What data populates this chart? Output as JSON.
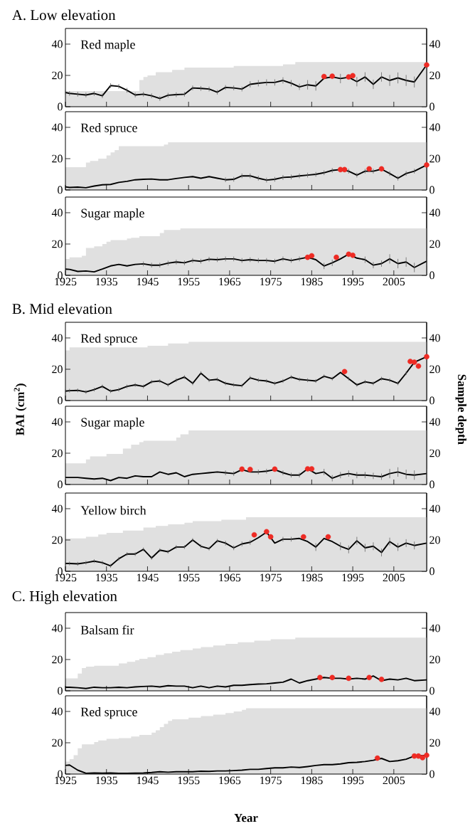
{
  "chart_data": [
    {
      "type": "line",
      "title": "A. Low elevation",
      "annotations": [
        "Red maple"
      ],
      "tick_labels": "y",
      "x": [
        1925,
        1926,
        1928,
        1930,
        1932,
        1934,
        1936,
        1938,
        1940,
        1942,
        1944,
        1946,
        1948,
        1950,
        1952,
        1954,
        1956,
        1958,
        1960,
        1962,
        1964,
        1966,
        1968,
        1970,
        1972,
        1974,
        1976,
        1978,
        1980,
        1982,
        1984,
        1986,
        1988,
        1990,
        1992,
        1994,
        1996,
        1998,
        2000,
        2002,
        2004,
        2006,
        2008,
        2010,
        2013
      ],
      "xlim": [
        1925,
        2013
      ],
      "xticks": [
        1925,
        1935,
        1945,
        1955,
        1965,
        1975,
        1985,
        1995,
        2005
      ],
      "ylim": [
        0,
        50
      ],
      "yticks": [
        0,
        20,
        40
      ],
      "y2lim": [
        0,
        50
      ],
      "y2ticks": [
        0,
        20,
        40
      ],
      "series": [
        {
          "type": "area",
          "axis": "y2",
          "color": "#e0e0e0",
          "x": [
            1925,
            1943,
            1943,
            1944,
            1944,
            1945,
            1945,
            1947,
            1947,
            1951,
            1951,
            1954,
            1954,
            1966,
            1966,
            1978,
            1978,
            1981,
            1981,
            2013
          ],
          "values": [
            10,
            10,
            17,
            17,
            19,
            19,
            20,
            20,
            22,
            22,
            23.5,
            23.5,
            25,
            25,
            26,
            26,
            27,
            27,
            28.5,
            28.5
          ]
        },
        {
          "color": "#000000",
          "values": [
            9.1,
            8.5,
            8,
            7.5,
            8.5,
            7,
            13.5,
            13,
            10.5,
            7.5,
            8,
            7,
            5.3,
            7.3,
            7.7,
            8,
            12,
            11.7,
            11.3,
            9.3,
            12.3,
            12,
            11.3,
            14.3,
            15,
            15.5,
            15.5,
            16.8,
            15,
            12.7,
            14,
            13.3,
            18.2,
            19,
            18,
            18.8,
            16,
            19,
            14.3,
            19,
            16.8,
            18.4,
            16.8,
            15.8,
            26.7
          ],
          "errors": [
            1.5,
            1.5,
            1.5,
            1.5,
            1.5,
            1.5,
            1.5,
            1.5,
            1.5,
            1.5,
            1.5,
            1.5,
            1.5,
            1.5,
            1.5,
            1.5,
            1.5,
            1.5,
            1.5,
            1.5,
            1.5,
            1.5,
            1.5,
            2,
            2,
            2,
            2,
            2,
            2,
            2,
            3,
            3,
            null,
            null,
            3,
            null,
            3,
            3,
            3,
            3,
            3.5,
            3.5,
            3.5,
            3.5,
            null
          ]
        },
        {
          "type": "scatter",
          "marker": "circle",
          "color": "#ee2b24",
          "x": [
            1988,
            1990,
            1994,
            1995,
            2013
          ],
          "values": [
            19.3,
            19.5,
            19,
            19.8,
            26.7
          ]
        }
      ]
    },
    {
      "type": "line",
      "annotations": [
        "Red spruce"
      ],
      "tick_labels": "y",
      "x": [
        1925,
        1926,
        1928,
        1930,
        1932,
        1934,
        1936,
        1938,
        1940,
        1942,
        1944,
        1946,
        1948,
        1950,
        1952,
        1954,
        1956,
        1958,
        1960,
        1962,
        1964,
        1966,
        1968,
        1970,
        1972,
        1974,
        1976,
        1978,
        1980,
        1982,
        1984,
        1986,
        1988,
        1990,
        1992,
        1994,
        1996,
        1998,
        2000,
        2002,
        2004,
        2006,
        2008,
        2010,
        2013
      ],
      "xlim": [
        1925,
        2013
      ],
      "xticks": [
        1925,
        1935,
        1945,
        1955,
        1965,
        1975,
        1985,
        1995,
        2005
      ],
      "ylim": [
        0,
        50
      ],
      "yticks": [
        0,
        20,
        40
      ],
      "y2lim": [
        0,
        50
      ],
      "y2ticks": [
        0,
        20,
        40
      ],
      "series": [
        {
          "type": "area",
          "axis": "y2",
          "color": "#e0e0e0",
          "x": [
            1925,
            1930,
            1930,
            1931,
            1931,
            1933,
            1933,
            1935,
            1935,
            1936,
            1936,
            1937,
            1937,
            1938,
            1938,
            1949,
            1949,
            1950,
            1950,
            2013
          ],
          "values": [
            14.5,
            14.5,
            17.5,
            17.5,
            18.5,
            18.5,
            20,
            20,
            22,
            22,
            24,
            24,
            25.5,
            25.5,
            28,
            28,
            29,
            29,
            30.5,
            30.5
          ]
        },
        {
          "color": "#000000",
          "values": [
            2,
            1.6,
            1.8,
            1.4,
            2.5,
            3.3,
            3.5,
            4.8,
            5.5,
            6.5,
            6.8,
            7,
            6.5,
            6.5,
            7.3,
            8,
            8.5,
            7.5,
            8.5,
            7.5,
            6.5,
            6.8,
            9,
            9,
            7.5,
            6.3,
            6.8,
            8,
            8.3,
            9,
            9.5,
            10,
            11,
            12.5,
            13,
            12,
            9.5,
            12,
            12,
            13.3,
            10.5,
            7.5,
            10.5,
            12,
            16
          ],
          "errors": [
            null,
            null,
            null,
            null,
            null,
            null,
            null,
            null,
            null,
            null,
            null,
            null,
            null,
            null,
            null,
            null,
            null,
            null,
            null,
            null,
            1.5,
            1.5,
            1.5,
            1.5,
            1.5,
            1.5,
            1.5,
            1.5,
            1.5,
            1.5,
            1.5,
            1.5,
            1.5,
            1.5,
            null,
            1.5,
            1.5,
            1.5,
            1.5,
            null,
            1.5,
            1.5,
            1.5,
            1.5,
            null
          ]
        },
        {
          "type": "scatter",
          "marker": "circle",
          "color": "#ee2b24",
          "x": [
            1992,
            1993,
            1999,
            2002,
            2013
          ],
          "values": [
            13,
            13,
            13.5,
            13.5,
            16
          ]
        }
      ]
    },
    {
      "type": "line",
      "annotations": [
        "Sugar maple"
      ],
      "x": [
        1925,
        1926,
        1928,
        1930,
        1932,
        1934,
        1936,
        1938,
        1940,
        1942,
        1944,
        1946,
        1948,
        1950,
        1952,
        1954,
        1956,
        1958,
        1960,
        1962,
        1964,
        1966,
        1968,
        1970,
        1972,
        1974,
        1976,
        1978,
        1980,
        1982,
        1984,
        1986,
        1988,
        1990,
        1992,
        1994,
        1996,
        1998,
        2000,
        2002,
        2004,
        2006,
        2008,
        2010,
        2013
      ],
      "xlim": [
        1925,
        2013
      ],
      "xticks": [
        1925,
        1935,
        1945,
        1955,
        1965,
        1975,
        1985,
        1995,
        2005
      ],
      "ylim": [
        0,
        50
      ],
      "yticks": [
        0,
        20,
        40
      ],
      "y2lim": [
        0,
        50
      ],
      "y2ticks": [
        0,
        20,
        40
      ],
      "series": [
        {
          "type": "area",
          "axis": "y2",
          "color": "#e0e0e0",
          "x": [
            1925,
            1926,
            1926,
            1929,
            1929,
            1930,
            1930,
            1932,
            1932,
            1934,
            1934,
            1935,
            1935,
            1936,
            1936,
            1940,
            1940,
            1941,
            1941,
            1943,
            1943,
            1948,
            1948,
            1949,
            1949,
            1953,
            1953,
            2013
          ],
          "values": [
            10.5,
            10.5,
            11.5,
            11.5,
            12.5,
            12.5,
            17.5,
            17.5,
            18.5,
            18.5,
            20,
            20,
            21.5,
            21.5,
            22.5,
            22.5,
            23.5,
            23.5,
            24,
            24,
            25,
            25,
            27,
            27,
            29,
            29,
            30,
            30
          ]
        },
        {
          "color": "#000000",
          "values": [
            4,
            3.8,
            2.5,
            2.8,
            2.2,
            4,
            6,
            7,
            6,
            7,
            7.3,
            6.5,
            6.5,
            7.8,
            8.5,
            8,
            9.5,
            9,
            10.3,
            10,
            10.5,
            10.5,
            9.5,
            10,
            9.5,
            9.5,
            9,
            10.5,
            9.5,
            10.5,
            11.5,
            10,
            6,
            8,
            10.5,
            13.5,
            11,
            10,
            6.5,
            7.5,
            10.5,
            7.5,
            8.5,
            5,
            9
          ],
          "errors": [
            null,
            null,
            null,
            null,
            null,
            null,
            null,
            null,
            null,
            null,
            1.5,
            1.5,
            1.5,
            1.5,
            1.5,
            1.5,
            1.5,
            1.5,
            1.5,
            1.5,
            1.5,
            1.5,
            1.5,
            1.5,
            1.5,
            1.5,
            1.5,
            1.5,
            1.5,
            1.5,
            null,
            null,
            2,
            2,
            null,
            null,
            null,
            2,
            2,
            2,
            3,
            3,
            3,
            3,
            3
          ]
        },
        {
          "type": "scatter",
          "marker": "circle",
          "color": "#ee2b24",
          "x": [
            1984,
            1985,
            1991,
            1994,
            1995
          ],
          "values": [
            11.5,
            12.5,
            11.5,
            13.5,
            12.8
          ]
        }
      ]
    },
    {
      "type": "line",
      "title": "B. Mid elevation",
      "annotations": [
        "Red spruce"
      ],
      "tick_labels": "y",
      "x": [
        1925,
        1926,
        1928,
        1930,
        1932,
        1934,
        1936,
        1938,
        1940,
        1942,
        1944,
        1946,
        1948,
        1950,
        1952,
        1954,
        1956,
        1958,
        1960,
        1962,
        1964,
        1966,
        1968,
        1970,
        1972,
        1974,
        1976,
        1978,
        1980,
        1982,
        1984,
        1986,
        1988,
        1990,
        1992,
        1994,
        1996,
        1998,
        2000,
        2002,
        2004,
        2006,
        2008,
        2010,
        2013
      ],
      "xlim": [
        1925,
        2013
      ],
      "xticks": [
        1925,
        1935,
        1945,
        1955,
        1965,
        1975,
        1985,
        1995,
        2005
      ],
      "ylim": [
        0,
        50
      ],
      "yticks": [
        0,
        20,
        40
      ],
      "y2lim": [
        0,
        50
      ],
      "y2ticks": [
        0,
        20,
        40
      ],
      "series": [
        {
          "type": "area",
          "axis": "y2",
          "color": "#e0e0e0",
          "x": [
            1925,
            1926,
            1926,
            1945,
            1945,
            1950,
            1950,
            1955,
            1955,
            2013
          ],
          "values": [
            32,
            32,
            34,
            34,
            35,
            35,
            36.5,
            36.5,
            37.5,
            37.5
          ]
        },
        {
          "color": "#000000",
          "values": [
            6,
            6.3,
            6.5,
            5.5,
            7,
            9,
            6,
            7,
            9,
            10,
            9,
            12,
            12.5,
            10,
            13,
            15,
            11,
            17.5,
            13,
            13.5,
            11,
            10,
            9.5,
            14.5,
            13,
            12.5,
            11,
            12.5,
            15,
            13.5,
            13,
            12.5,
            15.5,
            14,
            18,
            14,
            10,
            12,
            11,
            14,
            13,
            11,
            17.5,
            24.5,
            28
          ],
          "errors": [
            1.2,
            1.2,
            1.2,
            1.2,
            1.2,
            1.2,
            1.2,
            1.2,
            1.2,
            1.2,
            1.2,
            1.2,
            1.2,
            1.2,
            1.2,
            1.2,
            1.2,
            1.2,
            1.2,
            1.2,
            1.2,
            1.2,
            1.2,
            1.2,
            1.2,
            1.2,
            1.2,
            1.2,
            1.2,
            1.2,
            1.2,
            1.2,
            1.2,
            1.2,
            null,
            1.2,
            1.2,
            1.2,
            1.2,
            1.2,
            1.2,
            1.2,
            1.2,
            null,
            null
          ]
        },
        {
          "type": "scatter",
          "marker": "circle",
          "color": "#ee2b24",
          "x": [
            1993,
            2009,
            2010,
            2011,
            2013
          ],
          "values": [
            18.5,
            25,
            24.5,
            22,
            28
          ]
        }
      ]
    },
    {
      "type": "line",
      "annotations": [
        "Sugar maple"
      ],
      "tick_labels": "y",
      "ylabel": "BAI (cm$^{2}$)",
      "y2label": "Sample depth",
      "x": [
        1925,
        1926,
        1928,
        1930,
        1932,
        1934,
        1936,
        1938,
        1940,
        1942,
        1944,
        1946,
        1948,
        1950,
        1952,
        1954,
        1956,
        1958,
        1960,
        1962,
        1964,
        1966,
        1968,
        1970,
        1972,
        1974,
        1976,
        1978,
        1980,
        1982,
        1984,
        1986,
        1988,
        1990,
        1992,
        1994,
        1996,
        1998,
        2000,
        2002,
        2004,
        2006,
        2008,
        2010,
        2013
      ],
      "xlim": [
        1925,
        2013
      ],
      "xticks": [
        1925,
        1935,
        1945,
        1955,
        1965,
        1975,
        1985,
        1995,
        2005
      ],
      "ylim": [
        0,
        50
      ],
      "yticks": [
        0,
        20,
        40
      ],
      "y2lim": [
        0,
        50
      ],
      "y2ticks": [
        0,
        20,
        40
      ],
      "series": [
        {
          "type": "area",
          "axis": "y2",
          "color": "#e0e0e0",
          "x": [
            1925,
            1930,
            1930,
            1931,
            1931,
            1935,
            1935,
            1939,
            1939,
            1941,
            1941,
            1943,
            1943,
            1944,
            1944,
            1952,
            1952,
            1953,
            1953,
            1955,
            1955,
            2013
          ],
          "values": [
            13.5,
            13.5,
            16,
            16,
            18,
            18,
            19.5,
            19.5,
            23,
            23,
            25.5,
            25.5,
            27,
            27,
            28,
            28,
            30,
            30,
            32,
            32,
            34.5,
            34.5
          ]
        },
        {
          "color": "#000000",
          "values": [
            4.5,
            4.5,
            4.5,
            4,
            3.5,
            4,
            2.5,
            4.5,
            4,
            5.5,
            5,
            5,
            8,
            6.5,
            7.5,
            5,
            6.5,
            7,
            7.5,
            8,
            7.5,
            7,
            9.5,
            8,
            8,
            8.5,
            9.5,
            7.5,
            6,
            6,
            10,
            7,
            8,
            4,
            6,
            7,
            6,
            6,
            5.5,
            5,
            7,
            8,
            6.5,
            6,
            7
          ],
          "errors": [
            null,
            null,
            null,
            null,
            null,
            null,
            null,
            null,
            null,
            null,
            null,
            null,
            null,
            null,
            null,
            null,
            null,
            null,
            null,
            null,
            1.5,
            1.5,
            null,
            null,
            1.5,
            1.5,
            null,
            1.5,
            1.5,
            1.5,
            null,
            null,
            2,
            2,
            2,
            2,
            2,
            2,
            2,
            2,
            3,
            3,
            3,
            3,
            3
          ]
        },
        {
          "type": "scatter",
          "marker": "circle",
          "color": "#ee2b24",
          "x": [
            1968,
            1970,
            1976,
            1984,
            1985
          ],
          "values": [
            9.8,
            9.6,
            9.8,
            10,
            10
          ]
        }
      ]
    },
    {
      "type": "line",
      "annotations": [
        "Yellow birch"
      ],
      "x": [
        1925,
        1926,
        1928,
        1930,
        1932,
        1934,
        1936,
        1938,
        1940,
        1942,
        1944,
        1946,
        1948,
        1950,
        1952,
        1954,
        1956,
        1958,
        1960,
        1962,
        1964,
        1966,
        1968,
        1970,
        1972,
        1974,
        1976,
        1978,
        1980,
        1982,
        1984,
        1986,
        1988,
        1990,
        1992,
        1994,
        1996,
        1998,
        2000,
        2002,
        2004,
        2006,
        2008,
        2010,
        2013
      ],
      "xlim": [
        1925,
        2013
      ],
      "xticks": [
        1925,
        1935,
        1945,
        1955,
        1965,
        1975,
        1985,
        1995,
        2005
      ],
      "ylim": [
        0,
        50
      ],
      "yticks": [
        0,
        20,
        40
      ],
      "y2lim": [
        0,
        50
      ],
      "y2ticks": [
        0,
        20,
        40
      ],
      "series": [
        {
          "type": "area",
          "axis": "y2",
          "color": "#e0e0e0",
          "x": [
            1925,
            1930,
            1930,
            1933,
            1933,
            1935,
            1935,
            1939,
            1939,
            1944,
            1944,
            1947,
            1947,
            1950,
            1950,
            1954,
            1954,
            1956,
            1956,
            1963,
            1963,
            1969,
            1969,
            2013
          ],
          "values": [
            21,
            21,
            22,
            22,
            23.5,
            23.5,
            24.5,
            24.5,
            26,
            26,
            28,
            28,
            29,
            29,
            30,
            30,
            31,
            31,
            32,
            32,
            33,
            33,
            34.5,
            34.5
          ]
        },
        {
          "color": "#000000",
          "values": [
            5,
            5,
            4.8,
            5.5,
            6.5,
            5.5,
            3.5,
            8,
            11,
            11,
            14,
            8.5,
            13.5,
            12.5,
            15.5,
            15.5,
            20,
            16,
            14.5,
            19.5,
            18,
            15,
            17.5,
            18.5,
            21.5,
            25,
            18,
            20.5,
            20.5,
            21,
            19,
            15.5,
            21,
            19,
            16,
            14,
            19.5,
            15,
            16,
            12,
            19,
            15.5,
            18,
            16.5,
            18
          ],
          "errors": [
            1.2,
            1.2,
            1.2,
            1.2,
            1.2,
            1.2,
            1.2,
            1.2,
            1.2,
            1.2,
            1.2,
            1.2,
            1.2,
            1.2,
            1.2,
            1.2,
            1.2,
            1.2,
            1.2,
            1.2,
            1.5,
            1.5,
            1.5,
            1.5,
            null,
            null,
            null,
            1.5,
            1.5,
            null,
            null,
            2.5,
            null,
            null,
            2.5,
            2.5,
            2.5,
            2.5,
            2.5,
            2.5,
            2.5,
            2.5,
            2.5,
            2.5,
            2.5
          ]
        },
        {
          "type": "scatter",
          "marker": "circle",
          "color": "#ee2b24",
          "x": [
            1971,
            1974,
            1975,
            1983,
            1989
          ],
          "values": [
            23.3,
            25.3,
            22,
            22,
            22
          ]
        }
      ]
    },
    {
      "type": "line",
      "title": "C. High elevation",
      "annotations": [
        "Balsam fir"
      ],
      "tick_labels": "y",
      "x": [
        1925,
        1926,
        1928,
        1930,
        1932,
        1934,
        1936,
        1938,
        1940,
        1942,
        1944,
        1946,
        1948,
        1950,
        1952,
        1954,
        1956,
        1958,
        1960,
        1962,
        1964,
        1966,
        1968,
        1970,
        1972,
        1974,
        1976,
        1978,
        1980,
        1982,
        1984,
        1986,
        1988,
        1990,
        1992,
        1994,
        1996,
        1998,
        2000,
        2002,
        2004,
        2006,
        2008,
        2010,
        2013
      ],
      "xlim": [
        1925,
        2013
      ],
      "xticks": [
        1925,
        1935,
        1945,
        1955,
        1965,
        1975,
        1985,
        1995,
        2005
      ],
      "ylim": [
        0,
        50
      ],
      "yticks": [
        0,
        20,
        40
      ],
      "y2lim": [
        0,
        50
      ],
      "y2ticks": [
        0,
        20,
        40
      ],
      "series": [
        {
          "type": "area",
          "axis": "y2",
          "color": "#e0e0e0",
          "x": [
            1925,
            1928,
            1928,
            1929,
            1929,
            1930,
            1930,
            1932,
            1932,
            1938,
            1938,
            1940,
            1940,
            1942,
            1942,
            1943,
            1943,
            1945,
            1945,
            1947,
            1947,
            1949,
            1949,
            1951,
            1951,
            1953,
            1953,
            1956,
            1956,
            1958,
            1958,
            1961,
            1961,
            1964,
            1964,
            1967,
            1967,
            1971,
            1971,
            1975,
            1975,
            1981,
            1981,
            2013
          ],
          "values": [
            8,
            8,
            11,
            11,
            14.5,
            14.5,
            15.5,
            15.5,
            16,
            16,
            17.5,
            17.5,
            18.5,
            18.5,
            19.5,
            19.5,
            20.5,
            20.5,
            21.5,
            21.5,
            23,
            23,
            24,
            24,
            25,
            25,
            26,
            26,
            27,
            27,
            28,
            28,
            29,
            29,
            30,
            30,
            31,
            31,
            32,
            32,
            33,
            33,
            34,
            34
          ]
        },
        {
          "color": "#000000",
          "values": [
            2.3,
            2.3,
            2,
            1.5,
            2.3,
            2,
            2,
            2.3,
            2,
            2.5,
            2.8,
            3,
            2.5,
            3.3,
            3,
            3,
            2,
            3,
            2,
            3,
            2.5,
            3.5,
            3.5,
            4,
            4.3,
            4.5,
            5,
            5.5,
            7.5,
            5,
            6.5,
            7.5,
            8.5,
            8,
            8,
            7.5,
            8,
            7.5,
            9.5,
            6.5,
            7.5,
            7,
            8,
            6.5,
            7
          ]
        },
        {
          "type": "scatter",
          "marker": "circle",
          "color": "#ee2b24",
          "x": [
            1987,
            1990,
            1994,
            1999,
            2002
          ],
          "values": [
            8.5,
            8.5,
            8,
            8.5,
            7.3
          ]
        }
      ]
    },
    {
      "type": "line",
      "annotations": [
        "Red spruce"
      ],
      "xlabel": "Year",
      "x": [
        1925,
        1926,
        1928,
        1930,
        1932,
        1934,
        1936,
        1938,
        1940,
        1942,
        1944,
        1946,
        1948,
        1950,
        1952,
        1954,
        1956,
        1958,
        1960,
        1962,
        1964,
        1966,
        1968,
        1970,
        1972,
        1974,
        1976,
        1978,
        1980,
        1982,
        1984,
        1986,
        1988,
        1990,
        1992,
        1994,
        1996,
        1998,
        2000,
        2002,
        2004,
        2006,
        2008,
        2010,
        2013
      ],
      "xlim": [
        1925,
        2013
      ],
      "xticks": [
        1925,
        1935,
        1945,
        1955,
        1965,
        1975,
        1985,
        1995,
        2005
      ],
      "ylim": [
        0,
        50
      ],
      "yticks": [
        0,
        20,
        40
      ],
      "y2lim": [
        0,
        50
      ],
      "y2ticks": [
        0,
        20,
        40
      ],
      "series": [
        {
          "type": "area",
          "axis": "y2",
          "color": "#e0e0e0",
          "x": [
            1925,
            1926,
            1926,
            1927,
            1927,
            1928,
            1928,
            1929,
            1929,
            1932,
            1932,
            1933,
            1933,
            1935,
            1935,
            1938,
            1938,
            1941,
            1941,
            1943,
            1943,
            1946,
            1946,
            1947,
            1947,
            1948,
            1948,
            1949,
            1949,
            1950,
            1950,
            1951,
            1951,
            1955,
            1955,
            1958,
            1958,
            1961,
            1961,
            1964,
            1964,
            1966,
            1966,
            1968,
            1968,
            1969,
            1969,
            2013
          ],
          "values": [
            8,
            8,
            9.5,
            9.5,
            12,
            12,
            16.5,
            16.5,
            19,
            19,
            20.5,
            20.5,
            21.5,
            21.5,
            22.5,
            22.5,
            23,
            23,
            24,
            24,
            25,
            25,
            26.5,
            26.5,
            28,
            28,
            30,
            30,
            32,
            32,
            34,
            34,
            35,
            35,
            36,
            36,
            37,
            37,
            38,
            38,
            39,
            39,
            40,
            40,
            41,
            41,
            42,
            42
          ]
        },
        {
          "color": "#000000",
          "values": [
            5.5,
            5.8,
            2.5,
            0.5,
            0.7,
            0.6,
            0.7,
            0.5,
            0.5,
            0.6,
            0.7,
            1,
            1.5,
            1.2,
            1.5,
            1.5,
            1.5,
            1.8,
            1.7,
            2,
            2,
            2.2,
            2.5,
            3,
            3,
            3.5,
            4,
            4,
            4.5,
            4.2,
            4.8,
            5.5,
            6,
            6,
            6.5,
            7.3,
            7.5,
            8,
            8.8,
            10,
            8,
            8.5,
            9.5,
            11.5,
            12
          ]
        },
        {
          "type": "scatter",
          "marker": "circle",
          "color": "#ee2b24",
          "x": [
            2001,
            2010,
            2011,
            2012,
            2013
          ],
          "values": [
            10.2,
            11.5,
            11.5,
            10.5,
            12
          ]
        }
      ]
    }
  ]
}
